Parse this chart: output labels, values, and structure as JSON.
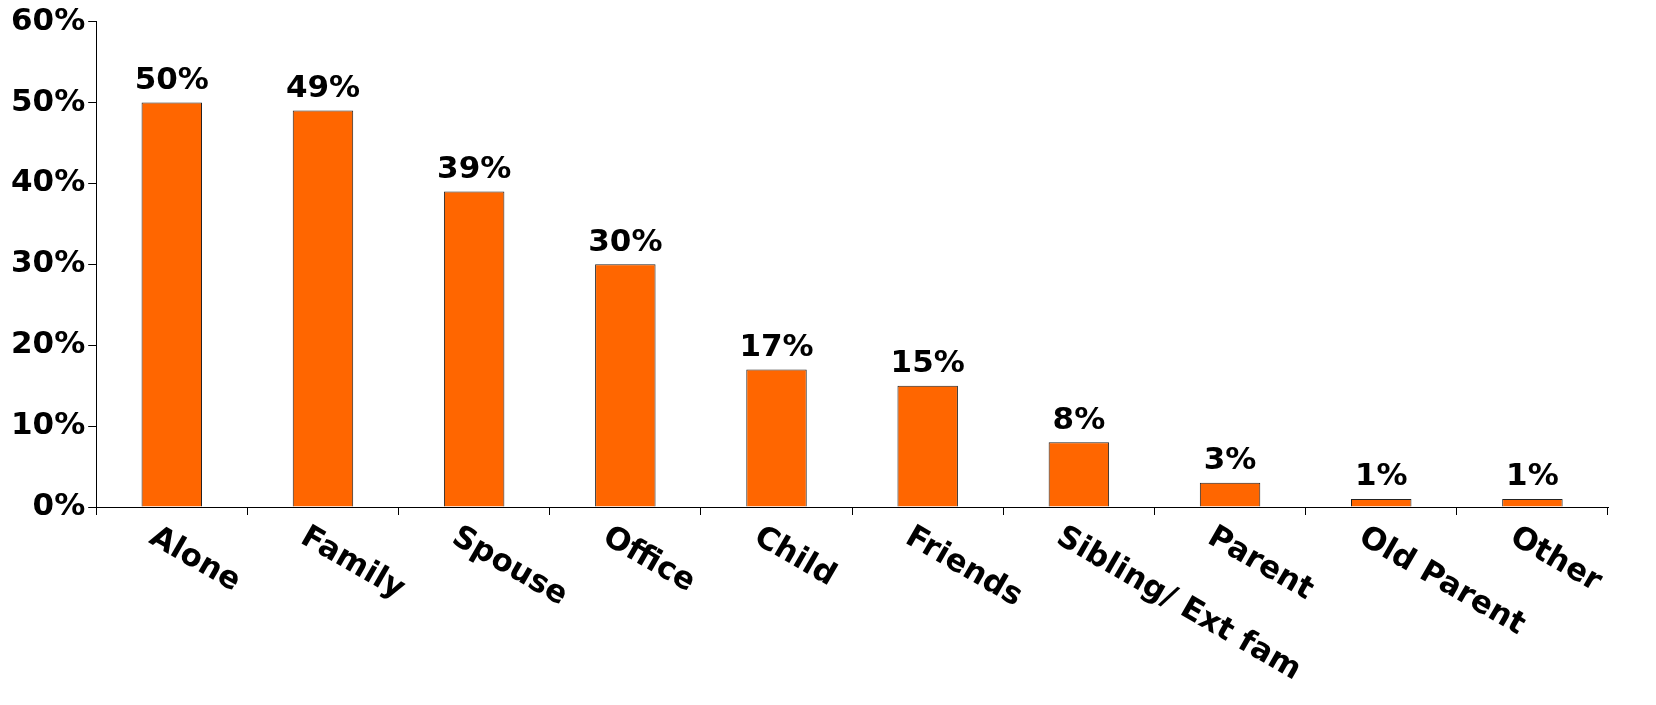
{
  "chart_data": {
    "type": "bar",
    "categories": [
      "Alone",
      "Family",
      "Spouse",
      "Office",
      "Child",
      "Friends",
      "Sibling/ Ext fam",
      "Parent",
      "Old Parent",
      "Other"
    ],
    "values": [
      50,
      49,
      39,
      30,
      17,
      15,
      8,
      3,
      1,
      1
    ],
    "value_labels": [
      "50%",
      "49%",
      "39%",
      "30%",
      "17%",
      "15%",
      "8%",
      "3%",
      "1%",
      "1%"
    ],
    "color": "#ff6600",
    "ylim": [
      0,
      60
    ],
    "yticks": [
      {
        "value": 0,
        "label": "0%"
      },
      {
        "value": 10,
        "label": "10%"
      },
      {
        "value": 20,
        "label": "20%"
      },
      {
        "value": 30,
        "label": "30%"
      },
      {
        "value": 40,
        "label": "40%"
      },
      {
        "value": 50,
        "label": "50%"
      },
      {
        "value": 60,
        "label": "60%"
      }
    ],
    "grid": false,
    "legend": false
  }
}
